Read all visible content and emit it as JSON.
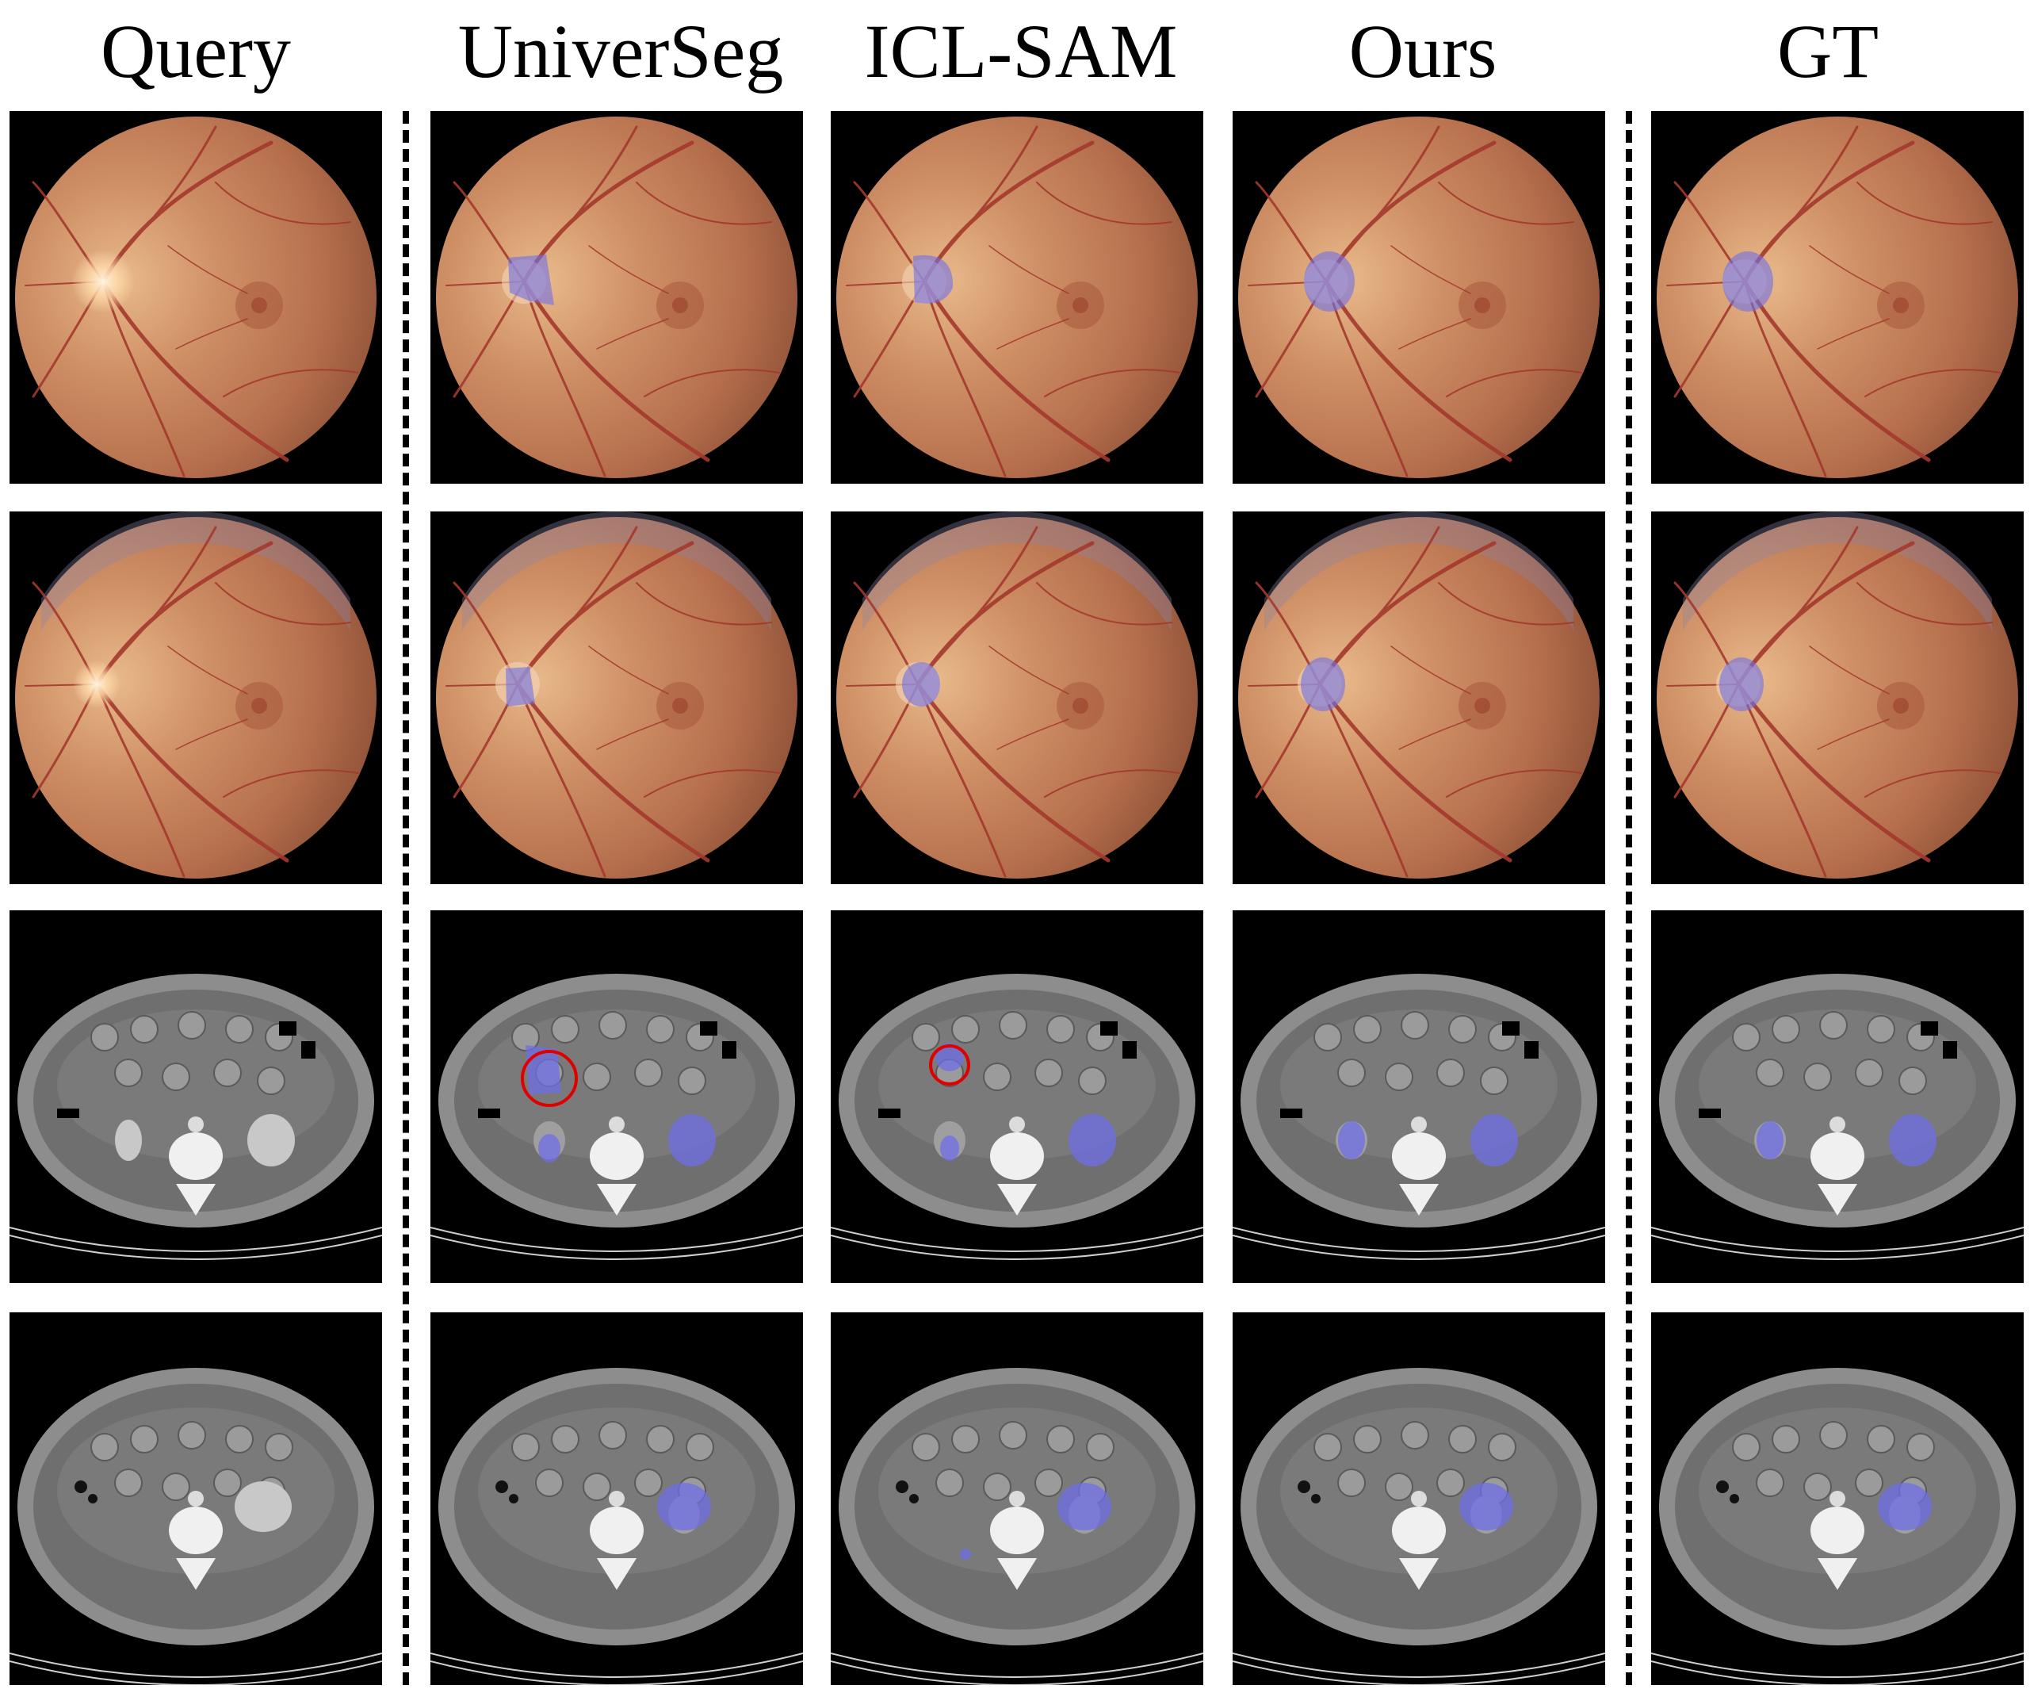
{
  "columns": [
    "Query",
    "UniverSeg",
    "ICL-SAM",
    "Ours",
    "GT"
  ],
  "rows": [
    {
      "modality": "fundus"
    },
    {
      "modality": "fundus"
    },
    {
      "modality": "ct"
    },
    {
      "modality": "ct"
    }
  ],
  "colors": {
    "background": "#ffffff",
    "tile_background": "#000000",
    "mask_overlay": "#6f6fe8",
    "error_circle": "#e00000"
  },
  "annotations": [
    {
      "row": 2,
      "column": "UniverSeg",
      "marker": "red-circle"
    },
    {
      "row": 2,
      "column": "ICL-SAM",
      "marker": "red-circle"
    }
  ]
}
